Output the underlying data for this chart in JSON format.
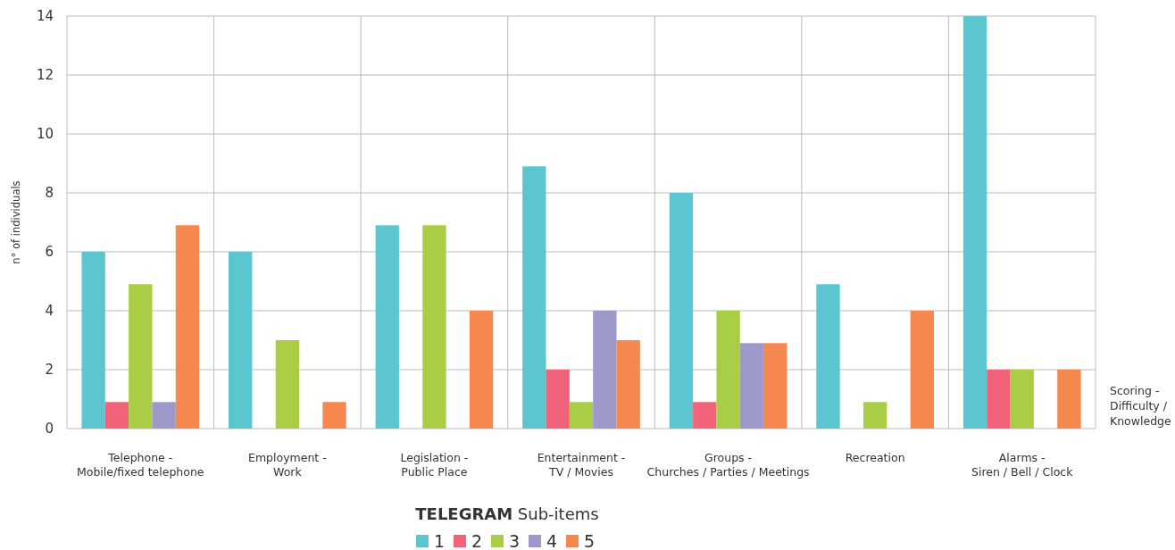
{
  "chart_data": {
    "type": "bar",
    "categories": [
      "Telephone -\nMobile/fixed telephone",
      "Employment  -\nWork",
      "Legislation -\nPublic Place",
      "Entertainment -\nTV / Movies",
      "Groups -\nChurches / Parties / Meetings",
      "Recreation",
      "Alarms -\nSiren / Bell / Clock"
    ],
    "series": [
      {
        "name": "1",
        "color": "#5bc6d0",
        "values": [
          6,
          6,
          6.9,
          8.9,
          8,
          4.9,
          14
        ]
      },
      {
        "name": "2",
        "color": "#f0637a",
        "values": [
          0.9,
          null,
          null,
          2,
          0.9,
          null,
          2
        ]
      },
      {
        "name": "3",
        "color": "#a9ce46",
        "values": [
          4.9,
          3,
          6.9,
          0.9,
          4,
          0.9,
          2
        ]
      },
      {
        "name": "4",
        "color": "#9d99cb",
        "values": [
          0.9,
          null,
          null,
          4,
          2.9,
          null,
          null
        ]
      },
      {
        "name": "5",
        "color": "#f5884f",
        "values": [
          6.9,
          0.9,
          4,
          3,
          2.9,
          4,
          2
        ]
      }
    ],
    "ylabel": "n° of individuals",
    "xlabel": "Scoring -\nDifficulty /\nKnowledge",
    "legend_title": "TELEGRAM Sub-items",
    "ylim": [
      0,
      14
    ],
    "yticks": [
      0,
      2,
      4,
      6,
      8,
      10,
      12,
      14
    ],
    "grid": true,
    "legend": "bottom"
  }
}
